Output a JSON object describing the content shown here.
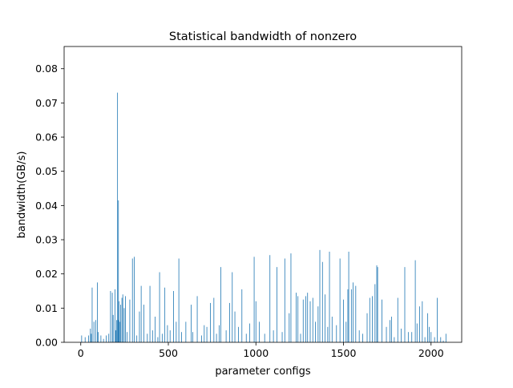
{
  "chart_data": {
    "type": "bar",
    "title": "Statistical bandwidth of nonzero",
    "xlabel": "parameter configs",
    "ylabel": "bandwidth(GB/s)",
    "xlim": [
      -95,
      2175
    ],
    "ylim": [
      0,
      0.0865
    ],
    "xticks": [
      0,
      500,
      1000,
      1500,
      2000
    ],
    "yticks": [
      0.0,
      0.01,
      0.02,
      0.03,
      0.04,
      0.05,
      0.06,
      0.07,
      0.08
    ],
    "ytick_labels": [
      "0.00",
      "0.01",
      "0.02",
      "0.03",
      "0.04",
      "0.05",
      "0.06",
      "0.07",
      "0.08"
    ],
    "bar_color": "#1f77b4",
    "series": [
      {
        "x": [
          5,
          25,
          45,
          55,
          60,
          65,
          75,
          85,
          95,
          100,
          115,
          130,
          145,
          160,
          170,
          180,
          185,
          195,
          200,
          205,
          210,
          212,
          215,
          218,
          222,
          228,
          235,
          240,
          248,
          255,
          265,
          280,
          295,
          305,
          320,
          335,
          345,
          360,
          380,
          395,
          410,
          425,
          440,
          450,
          465,
          480,
          495,
          510,
          530,
          545,
          560,
          575,
          600,
          630,
          640,
          665,
          690,
          705,
          720,
          740,
          760,
          775,
          790,
          800,
          830,
          850,
          865,
          880,
          900,
          920,
          945,
          965,
          990,
          1000,
          1020,
          1050,
          1080,
          1100,
          1120,
          1150,
          1165,
          1190,
          1200,
          1230,
          1240,
          1255,
          1270,
          1285,
          1295,
          1310,
          1325,
          1340,
          1355,
          1365,
          1380,
          1395,
          1410,
          1420,
          1435,
          1460,
          1480,
          1500,
          1515,
          1525,
          1530,
          1545,
          1555,
          1570,
          1590,
          1610,
          1635,
          1650,
          1665,
          1680,
          1690,
          1695,
          1720,
          1745,
          1765,
          1775,
          1790,
          1810,
          1830,
          1850,
          1870,
          1890,
          1910,
          1920,
          1935,
          1950,
          1965,
          1980,
          1990,
          2000,
          2020,
          2035,
          2055,
          2070,
          2085
        ],
        "values": [
          0.002,
          0.0015,
          0.002,
          0.004,
          0.0025,
          0.016,
          0.006,
          0.0065,
          0.0175,
          0.003,
          0.002,
          0.001,
          0.002,
          0.0025,
          0.015,
          0.0145,
          0.008,
          0.0155,
          0.0035,
          0.0065,
          0.073,
          0.0065,
          0.0415,
          0.012,
          0.006,
          0.011,
          0.013,
          0.014,
          0.01,
          0.0135,
          0.003,
          0.0125,
          0.0245,
          0.025,
          0.002,
          0.009,
          0.0165,
          0.011,
          0.0025,
          0.0165,
          0.0035,
          0.0075,
          0.0015,
          0.0205,
          0.0025,
          0.016,
          0.005,
          0.0035,
          0.015,
          0.006,
          0.0245,
          0.003,
          0.006,
          0.011,
          0.003,
          0.0135,
          0.002,
          0.005,
          0.0045,
          0.0115,
          0.013,
          0.0025,
          0.005,
          0.022,
          0.0035,
          0.0115,
          0.0205,
          0.009,
          0.0045,
          0.0155,
          0.0025,
          0.0055,
          0.025,
          0.012,
          0.006,
          0.0025,
          0.0255,
          0.0035,
          0.022,
          0.003,
          0.0245,
          0.0085,
          0.026,
          0.0145,
          0.0135,
          0.0025,
          0.0125,
          0.0135,
          0.0145,
          0.012,
          0.013,
          0.006,
          0.0105,
          0.027,
          0.0235,
          0.014,
          0.0045,
          0.0265,
          0.0075,
          0.005,
          0.0245,
          0.0125,
          0.006,
          0.0155,
          0.0265,
          0.0155,
          0.0175,
          0.0165,
          0.0035,
          0.0025,
          0.0085,
          0.013,
          0.0135,
          0.017,
          0.0225,
          0.022,
          0.0125,
          0.0045,
          0.0065,
          0.0075,
          0.0015,
          0.013,
          0.004,
          0.022,
          0.003,
          0.003,
          0.024,
          0.0055,
          0.0105,
          0.012,
          0.0015,
          0.0085,
          0.0045,
          0.003,
          0.0015,
          0.013,
          0.0015,
          0.0005,
          0.0025
        ]
      }
    ]
  }
}
